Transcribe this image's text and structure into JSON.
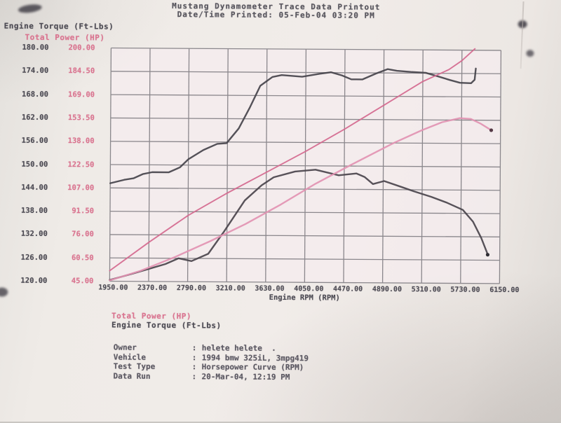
{
  "header": {
    "line1": "Mustang Dynamometer Trace Data Printout",
    "line2": "Date/Time Printed: 05-Feb-04 03:20 PM"
  },
  "legend": {
    "power": "Total Power (HP)",
    "torque": "Engine Torque (Ft-Lbs)"
  },
  "info": {
    "rows": [
      {
        "label": "Owner",
        "value": "helete helete  ."
      },
      {
        "label": "Vehicle",
        "value": "1994 bmw 325iL, 3mpg419"
      },
      {
        "label": "Test Type",
        "value": "Horsepower Curve (RPM)"
      },
      {
        "label": "Data Run",
        "value": "20-Mar-04, 12:19 PM"
      }
    ]
  },
  "chart_data": {
    "type": "line",
    "title": "Mustang Dynamometer Trace Data Printout",
    "grid": true,
    "grid_color": "#716f75",
    "x": {
      "label": "Engine RPM (RPM)",
      "range": [
        1950,
        6150
      ],
      "ticks": [
        "1950.00",
        "2370.00",
        "2790.00",
        "3210.00",
        "3630.00",
        "4050.00",
        "4470.00",
        "4890.00",
        "5310.00",
        "5730.00",
        "6150.00"
      ]
    },
    "y_left": {
      "label": "Engine Torque (Ft-Lbs)",
      "range": [
        120,
        180
      ],
      "ticks": [
        "180.00",
        "174.00",
        "168.00",
        "162.00",
        "156.00",
        "150.00",
        "144.00",
        "138.00",
        "132.00",
        "126.00",
        "120.00"
      ]
    },
    "y_power": {
      "label": "Total Power (HP)",
      "range": [
        45,
        200
      ],
      "ticks": [
        "200.00",
        "184.50",
        "169.00",
        "153.50",
        "138.00",
        "122.50",
        "107.00",
        "91.50",
        "76.00",
        "60.50",
        "45.00"
      ]
    },
    "series": [
      {
        "id": "torque-run1-curve",
        "name": "Engine Torque (Ft-Lbs) run 1",
        "axis": "torque",
        "color": "#45434b",
        "width": 2.4,
        "points": [
          [
            1950,
            145.2
          ],
          [
            2100,
            146.1
          ],
          [
            2200,
            146.5
          ],
          [
            2300,
            147.6
          ],
          [
            2400,
            148.1
          ],
          [
            2580,
            148.1
          ],
          [
            2700,
            149.4
          ],
          [
            2790,
            151.5
          ],
          [
            2950,
            153.9
          ],
          [
            3100,
            155.5
          ],
          [
            3200,
            155.7
          ],
          [
            3330,
            159.5
          ],
          [
            3450,
            165.0
          ],
          [
            3560,
            170.5
          ],
          [
            3690,
            172.8
          ],
          [
            3790,
            173.3
          ],
          [
            4010,
            172.9
          ],
          [
            4200,
            173.7
          ],
          [
            4320,
            174.1
          ],
          [
            4440,
            173.3
          ],
          [
            4540,
            172.3
          ],
          [
            4660,
            172.3
          ],
          [
            4810,
            173.9
          ],
          [
            4930,
            175.0
          ],
          [
            5030,
            174.6
          ],
          [
            5180,
            174.3
          ],
          [
            5340,
            174.1
          ],
          [
            5460,
            173.3
          ],
          [
            5600,
            172.3
          ],
          [
            5710,
            171.6
          ],
          [
            5830,
            171.5
          ],
          [
            5868,
            172.4
          ],
          [
            5880,
            175.3
          ]
        ]
      },
      {
        "id": "power-run1-curve",
        "name": "Total Power (HP) run 1",
        "axis": "power",
        "color": "#d4688e",
        "width": 1.9,
        "points": [
          [
            1950,
            52
          ],
          [
            2370,
            71
          ],
          [
            2790,
            89
          ],
          [
            3210,
            104
          ],
          [
            3630,
            118
          ],
          [
            4050,
            132
          ],
          [
            4470,
            147
          ],
          [
            4890,
            163
          ],
          [
            5310,
            179
          ],
          [
            5590,
            187
          ],
          [
            5730,
            193
          ],
          [
            5870,
            201
          ]
        ]
      },
      {
        "id": "torque-run2-curve",
        "name": "Engine Torque (Ft-Lbs) run 2",
        "axis": "torque",
        "color": "#4a444c",
        "width": 2.4,
        "end_dot": true,
        "end_dot_color": "#2f2d33",
        "points": [
          [
            1950,
            120.3
          ],
          [
            2200,
            122.0
          ],
          [
            2550,
            124.5
          ],
          [
            2690,
            126.0
          ],
          [
            2830,
            125.3
          ],
          [
            3010,
            127.2
          ],
          [
            3180,
            133.0
          ],
          [
            3400,
            141.0
          ],
          [
            3580,
            144.9
          ],
          [
            3710,
            147.0
          ],
          [
            3940,
            148.5
          ],
          [
            4160,
            149.0
          ],
          [
            4410,
            147.6
          ],
          [
            4600,
            148.1
          ],
          [
            4690,
            147.2
          ],
          [
            4780,
            145.4
          ],
          [
            4900,
            146.2
          ],
          [
            5100,
            144.6
          ],
          [
            5220,
            143.6
          ],
          [
            5410,
            142.2
          ],
          [
            5580,
            140.7
          ],
          [
            5750,
            138.9
          ],
          [
            5860,
            135.9
          ],
          [
            5950,
            131.7
          ],
          [
            6010,
            128.1
          ],
          [
            6020,
            127.4
          ]
        ]
      },
      {
        "id": "power-run2-curve",
        "name": "Total Power (HP) run 2",
        "axis": "power",
        "color": "#e292b2",
        "width": 2.4,
        "end_dot": true,
        "end_dot_color": "#553a46",
        "points": [
          [
            1950,
            45.5
          ],
          [
            2280,
            52.0
          ],
          [
            2650,
            61.3
          ],
          [
            3030,
            72.0
          ],
          [
            3410,
            83.6
          ],
          [
            3790,
            96.7
          ],
          [
            4160,
            110.6
          ],
          [
            4540,
            123.2
          ],
          [
            5000,
            138.0
          ],
          [
            5300,
            146.5
          ],
          [
            5520,
            152.0
          ],
          [
            5710,
            154.8
          ],
          [
            5830,
            154.3
          ],
          [
            5940,
            151.1
          ],
          [
            6050,
            146.9
          ]
        ]
      }
    ]
  }
}
